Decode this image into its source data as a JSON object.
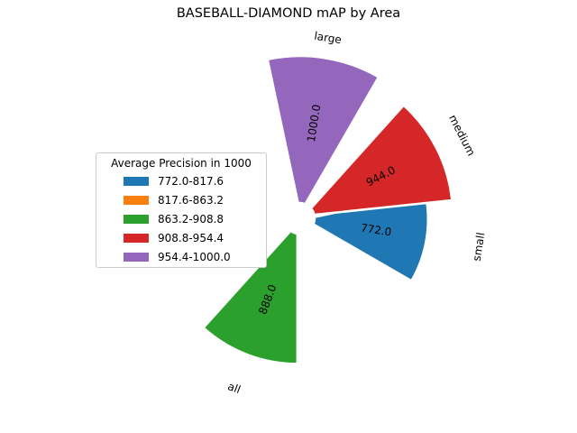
{
  "chart_data": {
    "type": "polar-bar",
    "title": "BASEBALL-DIAMOND mAP by Area",
    "categories": [
      "all",
      "small",
      "medium",
      "large"
    ],
    "values": [
      888.0,
      772.0,
      944.0,
      1000.0
    ],
    "value_labels": [
      "888.0",
      "772.0",
      "944.0",
      "1000.0"
    ],
    "legend": {
      "title": "Average Precision in 1000",
      "placement": "left",
      "bins": [
        {
          "label": "772.0-817.6",
          "color": "#1f77b4"
        },
        {
          "label": "817.6-863.2",
          "color": "#ff7f0e"
        },
        {
          "label": "863.2-908.8",
          "color": "#2ca02c"
        },
        {
          "label": "908.8-954.4",
          "color": "#d62728"
        },
        {
          "label": "954.4-1000.0",
          "color": "#9467bd"
        }
      ]
    },
    "bar_colors": [
      "#2ca02c",
      "#1f77b4",
      "#d62728",
      "#9467bd"
    ]
  }
}
